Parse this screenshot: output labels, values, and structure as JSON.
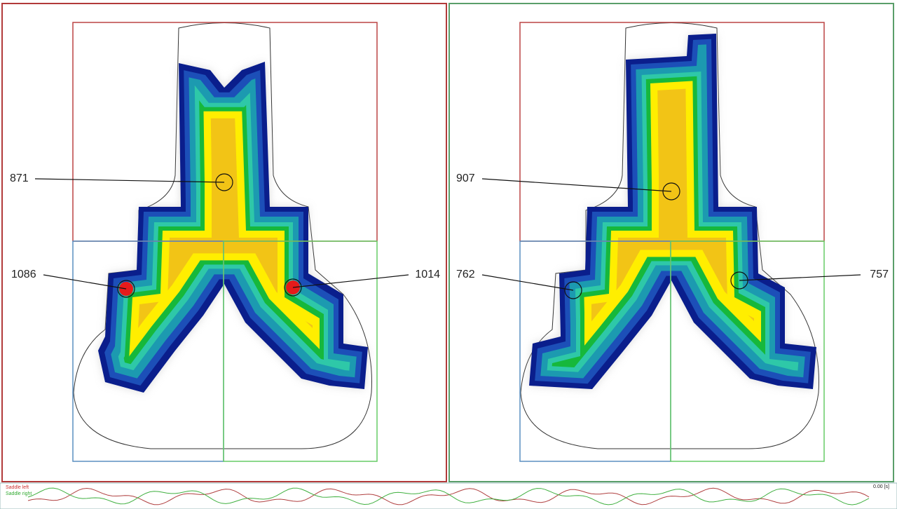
{
  "panels": [
    {
      "points": [
        871,
        1086,
        1014
      ]
    },
    {
      "points": [
        907,
        762,
        757
      ]
    }
  ],
  "timeline": {
    "legend": [
      "Saddle left",
      "Saddle right"
    ],
    "time": "0.00 [s]"
  }
}
